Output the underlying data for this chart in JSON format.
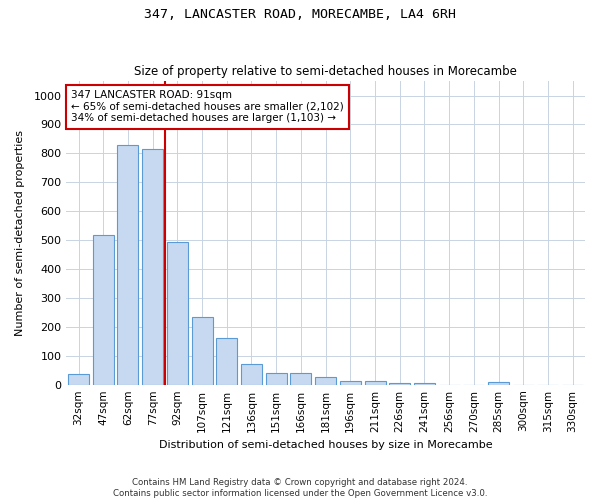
{
  "title": "347, LANCASTER ROAD, MORECAMBE, LA4 6RH",
  "subtitle": "Size of property relative to semi-detached houses in Morecambe",
  "xlabel": "Distribution of semi-detached houses by size in Morecambe",
  "ylabel": "Number of semi-detached properties",
  "categories": [
    "32sqm",
    "47sqm",
    "62sqm",
    "77sqm",
    "92sqm",
    "107sqm",
    "121sqm",
    "136sqm",
    "151sqm",
    "166sqm",
    "181sqm",
    "196sqm",
    "211sqm",
    "226sqm",
    "241sqm",
    "256sqm",
    "270sqm",
    "285sqm",
    "300sqm",
    "315sqm",
    "330sqm"
  ],
  "values": [
    38,
    518,
    828,
    815,
    493,
    235,
    160,
    72,
    40,
    40,
    28,
    13,
    13,
    5,
    5,
    0,
    0,
    10,
    0,
    0,
    0
  ],
  "bar_color": "#c6d9f0",
  "bar_edge_color": "#5b9bd5",
  "highlight_bar_index": 4,
  "annotation_line1": "347 LANCASTER ROAD: 91sqm",
  "annotation_line2": "← 65% of semi-detached houses are smaller (2,102)",
  "annotation_line3": "34% of semi-detached houses are larger (1,103) →",
  "annotation_box_color": "#ffffff",
  "annotation_box_edge_color": "#cc0000",
  "vline_color": "#cc0000",
  "ylim": [
    0,
    1050
  ],
  "yticks": [
    0,
    100,
    200,
    300,
    400,
    500,
    600,
    700,
    800,
    900,
    1000
  ],
  "footer1": "Contains HM Land Registry data © Crown copyright and database right 2024.",
  "footer2": "Contains public sector information licensed under the Open Government Licence v3.0.",
  "background_color": "#ffffff",
  "grid_color": "#c8d4e3",
  "title_fontsize": 9.5,
  "subtitle_fontsize": 8.5
}
